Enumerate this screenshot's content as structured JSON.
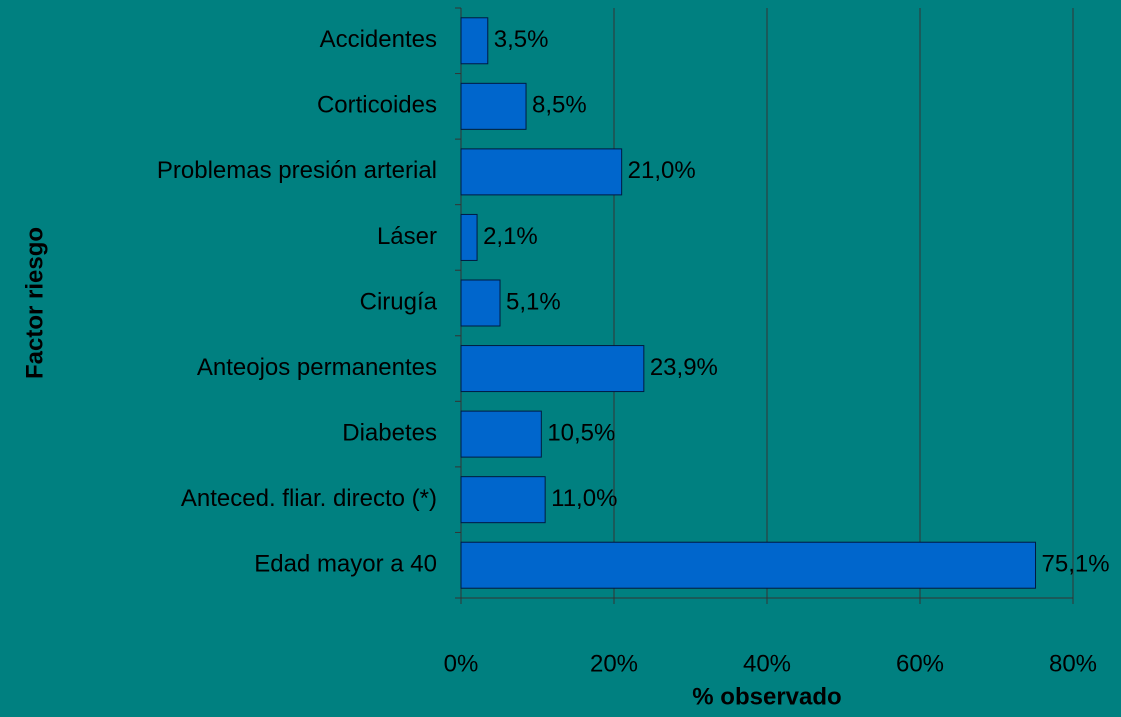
{
  "chart_data": {
    "type": "bar",
    "orientation": "horizontal",
    "x_label": "% observado",
    "y_label": "Factor riesgo",
    "categories": [
      "Accidentes",
      "Corticoides",
      "Problemas presión arterial",
      "Láser",
      "Cirugía",
      "Anteojos permanentes",
      "Diabetes",
      "Anteced. fliar. directo (*)",
      "Edad mayor a 40"
    ],
    "values": [
      3.5,
      8.5,
      21.0,
      2.1,
      5.1,
      23.9,
      10.5,
      11.0,
      75.1
    ],
    "value_labels": [
      "3,5%",
      "8,5%",
      "21,0%",
      "2,1%",
      "5,1%",
      "23,9%",
      "10,5%",
      "11,0%",
      "75,1%"
    ],
    "color": "#0066cc",
    "xlim": [
      0,
      80
    ],
    "xticks": [
      {
        "value": 0,
        "label": "0%"
      },
      {
        "value": 20,
        "label": "20%"
      },
      {
        "value": 40,
        "label": "40%"
      },
      {
        "value": 60,
        "label": "60%"
      },
      {
        "value": 80,
        "label": "80%"
      }
    ],
    "grid": true
  }
}
